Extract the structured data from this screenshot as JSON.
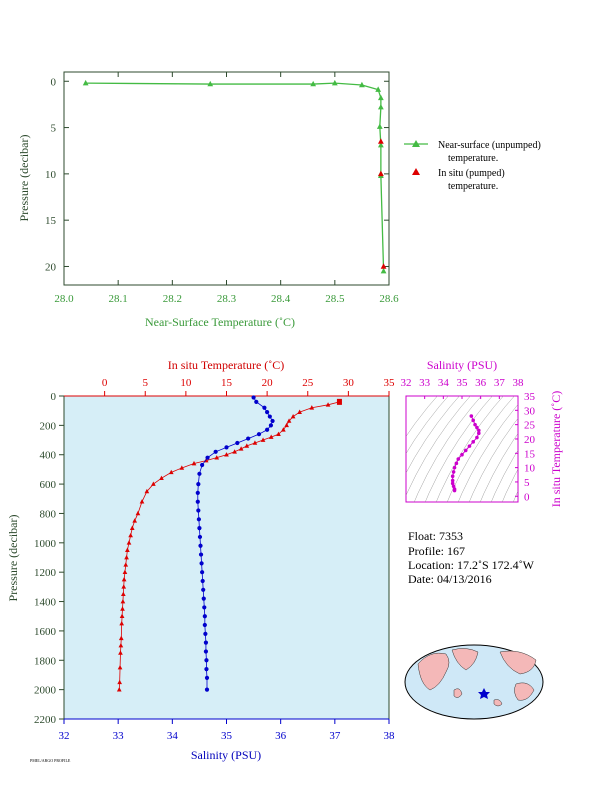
{
  "chart_data": [
    {
      "type": "line",
      "xlabel": "Near-Surface Temperature (˚C)",
      "ylabel": "Pressure (decibar)",
      "xlim": [
        28.0,
        28.6
      ],
      "ylim": [
        22,
        -1
      ],
      "x_ticks": [
        "28.0",
        "28.1",
        "28.2",
        "28.3",
        "28.4",
        "28.5",
        "28.6"
      ],
      "y_ticks": [
        "0",
        "5",
        "10",
        "15",
        "20"
      ],
      "legend_position": "right",
      "series": [
        {
          "name": "Near-surface (unpumped)",
          "name2": "temperature.",
          "color": "#44bb44",
          "marker": "triangle",
          "x": [
            28.04,
            28.27,
            28.46,
            28.5,
            28.55,
            28.58,
            28.585,
            28.585,
            28.583,
            28.585,
            28.585,
            28.585,
            28.59
          ],
          "y": [
            0.2,
            0.3,
            0.3,
            0.2,
            0.4,
            0.9,
            1.8,
            2.8,
            4.9,
            6.9,
            10.0,
            10.2,
            20.5
          ]
        },
        {
          "name": "In situ (pumped)",
          "name2": "temperature.",
          "color": "#dd0000",
          "marker": "triangle",
          "x": [
            28.585,
            28.585,
            28.59
          ],
          "y": [
            6.5,
            10.0,
            20.0
          ]
        }
      ]
    },
    {
      "type": "line",
      "title_top": "In situ Temperature (˚C)",
      "xlabel": "Salinity (PSU)",
      "ylabel": "Pressure (decibar)",
      "temp_lim": [
        -5,
        35
      ],
      "temp_ticks": [
        "0",
        "5",
        "10",
        "15",
        "20",
        "25",
        "30",
        "35"
      ],
      "sal_lim": [
        32,
        38
      ],
      "sal_ticks": [
        "32",
        "33",
        "34",
        "35",
        "36",
        "37",
        "38"
      ],
      "pres_lim": [
        0,
        2200
      ],
      "pres_ticks": [
        "0",
        "200",
        "400",
        "600",
        "800",
        "1000",
        "1200",
        "1400",
        "1600",
        "1800",
        "2000",
        "2200"
      ],
      "series": [
        {
          "name": "In situ Temperature",
          "color": "#dd0000",
          "marker": "triangle",
          "x": [
            28.9,
            27.5,
            25.5,
            24.0,
            23.2,
            22.7,
            22.4,
            22.0,
            21.4,
            20.5,
            19.5,
            18.5,
            17.5,
            16.8,
            16.0,
            15.0,
            13.8,
            12.5,
            11.0,
            9.5,
            8.2,
            7.0,
            6.0,
            5.2,
            4.6,
            4.1,
            3.7,
            3.4,
            3.2,
            3.0,
            2.8,
            2.7,
            2.6,
            2.5,
            2.4,
            2.35,
            2.3,
            2.25,
            2.2,
            2.15,
            2.1,
            2.05,
            2.0,
            1.95,
            1.9,
            1.85,
            1.8
          ],
          "y": [
            40,
            60,
            80,
            110,
            140,
            170,
            200,
            230,
            260,
            280,
            300,
            320,
            340,
            360,
            380,
            400,
            420,
            440,
            460,
            490,
            520,
            560,
            600,
            650,
            720,
            800,
            850,
            900,
            950,
            1000,
            1050,
            1100,
            1150,
            1200,
            1250,
            1300,
            1350,
            1400,
            1450,
            1500,
            1550,
            1650,
            1700,
            1750,
            1850,
            1950,
            2000
          ]
        },
        {
          "name": "Salinity",
          "color": "#0000cc",
          "marker": "dot",
          "x": [
            35.5,
            35.55,
            35.7,
            35.75,
            35.8,
            35.85,
            35.82,
            35.75,
            35.6,
            35.4,
            35.2,
            35.0,
            34.8,
            34.65,
            34.55,
            34.5,
            34.48,
            34.47,
            34.47,
            34.48,
            34.49,
            34.5,
            34.51,
            34.52,
            34.53,
            34.54,
            34.55,
            34.56,
            34.57,
            34.58,
            34.59,
            34.6,
            34.6,
            34.61,
            34.62,
            34.62,
            34.63,
            34.63,
            34.64,
            34.64
          ],
          "y": [
            10,
            40,
            80,
            110,
            140,
            170,
            200,
            230,
            260,
            290,
            320,
            350,
            380,
            420,
            470,
            530,
            600,
            660,
            720,
            780,
            840,
            900,
            960,
            1020,
            1080,
            1140,
            1200,
            1260,
            1320,
            1380,
            1440,
            1500,
            1560,
            1620,
            1680,
            1740,
            1800,
            1860,
            1920,
            2000
          ]
        }
      ]
    },
    {
      "type": "scatter",
      "title": "Salinity (PSU)",
      "ylabel": "In situ Temperature (˚C)",
      "sal_ticks": [
        "32",
        "33",
        "34",
        "35",
        "36",
        "37",
        "38"
      ],
      "temp_ticks": [
        "0",
        "5",
        "10",
        "15",
        "20",
        "25",
        "30",
        "35"
      ],
      "x": [
        35.5,
        35.6,
        35.7,
        35.8,
        35.9,
        35.9,
        35.8,
        35.6,
        35.4,
        35.2,
        35.0,
        34.8,
        34.7,
        34.6,
        34.55,
        34.5,
        34.5,
        34.5,
        34.55,
        34.6,
        34.6
      ],
      "y": [
        28.0,
        26.5,
        25.0,
        24.0,
        23.0,
        22.0,
        20.5,
        19.0,
        17.5,
        16.0,
        14.5,
        13.0,
        11.5,
        10.0,
        8.5,
        7.0,
        5.5,
        4.5,
        3.5,
        2.5,
        2.0
      ]
    }
  ],
  "info": {
    "float": "Float:  7353",
    "profile": "Profile:  167",
    "location": "Location:  17.2˚S  172.4˚W",
    "date": "Date:  04/13/2016"
  },
  "footer_text": "PMEL/ARGO PROFILE",
  "colors": {
    "green": "#44bb44",
    "red": "#dd0000",
    "blue": "#0000cc",
    "magenta": "#cc00cc",
    "plot_bg": "#d6eef7",
    "land": "#f4b8b8",
    "ocean": "#cfe8f7"
  }
}
